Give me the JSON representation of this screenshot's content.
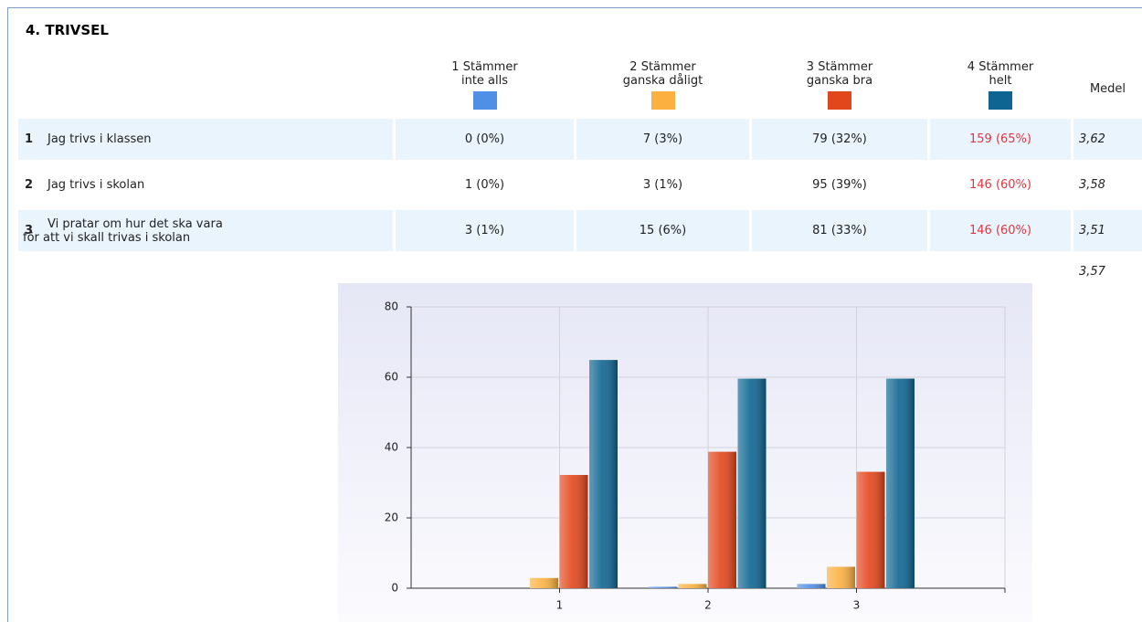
{
  "section_title": "4. TRIVSEL",
  "table": {
    "columns": [
      "1 Stämmer\ninte alls",
      "2 Stämmer\nganska dåligt",
      "3 Stämmer\nganska bra",
      "4 Stämmer\nhelt"
    ],
    "mean_header": "Medel",
    "rows": [
      {
        "number": "1",
        "question": "Jag trivs i klassen",
        "cells": [
          "0 (0%)",
          "7 (3%)",
          "79 (32%)",
          "159 (65%)"
        ],
        "mean": "3,62"
      },
      {
        "number": "2",
        "question": "Jag trivs i skolan",
        "cells": [
          "1 (0%)",
          "3 (1%)",
          "95 (39%)",
          "146 (60%)"
        ],
        "mean": "3,58"
      },
      {
        "number": "3",
        "question": "Vi pratar om hur det ska vara\nför att vi skall trivas i skolan",
        "cells": [
          "3 (1%)",
          "15 (6%)",
          "81 (33%)",
          "146 (60%)"
        ],
        "mean": "3,51"
      }
    ],
    "total_mean": "3,57"
  },
  "chart_data": {
    "type": "bar",
    "categories": [
      "1",
      "2",
      "3"
    ],
    "series": [
      {
        "color": "#4f8fe6",
        "values": [
          0,
          0.4,
          1.2
        ]
      },
      {
        "color": "#fbb040",
        "values": [
          2.9,
          1.2,
          6.1
        ]
      },
      {
        "color": "#e2461b",
        "values": [
          32.2,
          38.8,
          33.1
        ]
      },
      {
        "color": "#0e6591",
        "values": [
          64.9,
          59.6,
          59.6
        ]
      }
    ],
    "ylim": [
      0,
      80
    ],
    "yticks": [
      0,
      20,
      40,
      60,
      80
    ],
    "grid": true
  }
}
